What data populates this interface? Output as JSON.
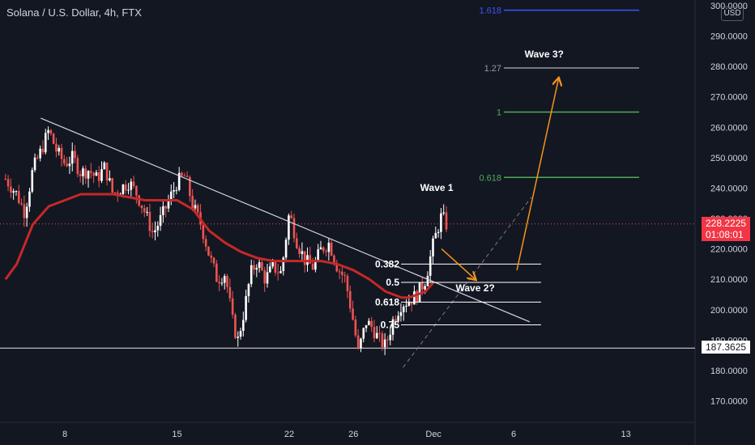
{
  "header": {
    "ticker": "Solana / U.S. Dollar, 4h, FTX",
    "currency": "USD"
  },
  "price_tag": {
    "price": "228.2225",
    "countdown": "01:08:01",
    "color": "#f23645"
  },
  "level_tag": {
    "price": "187.3625"
  },
  "colors": {
    "background": "#131722",
    "up": "#ffffff",
    "down": "#ef5350",
    "ma": "#c62828",
    "projection": "#f7931a"
  },
  "chart_data": {
    "type": "candlestick",
    "ylim": [
      163,
      300
    ],
    "y_ticks": [
      "300.0000",
      "290.0000",
      "280.0000",
      "270.0000",
      "260.0000",
      "250.0000",
      "240.0000",
      "230.0000",
      "220.0000",
      "210.0000",
      "200.0000",
      "190.0000",
      "180.0000",
      "170.0000"
    ],
    "x_ticks": [
      {
        "label": "8",
        "day": 8
      },
      {
        "label": "15",
        "day": 15
      },
      {
        "label": "22",
        "day": 22
      },
      {
        "label": "26",
        "day": 26
      },
      {
        "label": "Dec",
        "day": 31
      },
      {
        "label": "6",
        "day": 36
      },
      {
        "label": "13",
        "day": 43
      }
    ],
    "x_range_days": [
      4.3,
      46
    ],
    "close_path": [
      [
        4.3,
        243
      ],
      [
        5.0,
        238
      ],
      [
        5.5,
        232
      ],
      [
        6.0,
        246
      ],
      [
        6.5,
        252
      ],
      [
        7.0,
        259
      ],
      [
        7.5,
        252
      ],
      [
        8.0,
        248
      ],
      [
        8.5,
        250
      ],
      [
        9.0,
        245
      ],
      [
        9.5,
        246
      ],
      [
        10.0,
        243
      ],
      [
        10.5,
        247
      ],
      [
        11.0,
        238
      ],
      [
        11.5,
        240
      ],
      [
        12.0,
        242
      ],
      [
        12.5,
        238
      ],
      [
        13.0,
        232
      ],
      [
        13.5,
        225
      ],
      [
        14.0,
        230
      ],
      [
        14.5,
        236
      ],
      [
        15.0,
        242
      ],
      [
        15.5,
        244
      ],
      [
        16.0,
        234
      ],
      [
        16.5,
        228
      ],
      [
        17.0,
        218
      ],
      [
        17.5,
        210
      ],
      [
        18.0,
        212
      ],
      [
        18.5,
        195
      ],
      [
        18.8,
        190
      ],
      [
        19.2,
        200
      ],
      [
        19.6,
        212
      ],
      [
        20.0,
        216
      ],
      [
        20.5,
        210
      ],
      [
        21.0,
        214
      ],
      [
        21.5,
        212
      ],
      [
        22.0,
        232
      ],
      [
        22.5,
        222
      ],
      [
        23.0,
        216
      ],
      [
        23.5,
        214
      ],
      [
        24.0,
        220
      ],
      [
        24.5,
        222
      ],
      [
        25.0,
        214
      ],
      [
        25.5,
        210
      ],
      [
        26.0,
        196
      ],
      [
        26.3,
        186
      ],
      [
        26.8,
        196
      ],
      [
        27.2,
        194
      ],
      [
        27.6,
        190
      ],
      [
        28.0,
        188
      ],
      [
        28.5,
        197
      ],
      [
        29.0,
        202
      ],
      [
        29.5,
        203
      ],
      [
        30.0,
        205
      ],
      [
        30.5,
        210
      ],
      [
        31.0,
        222
      ],
      [
        31.5,
        231
      ],
      [
        31.8,
        228
      ]
    ],
    "moving_average": [
      [
        4.3,
        210
      ],
      [
        5.0,
        215
      ],
      [
        6.0,
        228
      ],
      [
        7.0,
        234
      ],
      [
        8.0,
        236
      ],
      [
        9.0,
        238
      ],
      [
        10.0,
        238
      ],
      [
        11.0,
        238
      ],
      [
        12.0,
        237
      ],
      [
        13.0,
        236
      ],
      [
        14.0,
        236
      ],
      [
        15.0,
        236
      ],
      [
        16.0,
        233
      ],
      [
        17.0,
        226
      ],
      [
        18.0,
        222
      ],
      [
        19.0,
        219
      ],
      [
        20.0,
        217
      ],
      [
        21.0,
        216
      ],
      [
        22.0,
        216
      ],
      [
        23.0,
        216
      ],
      [
        24.0,
        216
      ],
      [
        25.0,
        215
      ],
      [
        26.0,
        213
      ],
      [
        27.0,
        210
      ],
      [
        28.0,
        206
      ],
      [
        29.0,
        204
      ],
      [
        29.5,
        204
      ],
      [
        30.0,
        205
      ],
      [
        30.5,
        206
      ],
      [
        31.0,
        209
      ]
    ],
    "trendline": [
      [
        6.5,
        263
      ],
      [
        37.0,
        196
      ]
    ],
    "support_level": 187.3625,
    "current_price": 228.2225,
    "fib_retracement": [
      {
        "label": "0.382",
        "value": 215.0
      },
      {
        "label": "0.5",
        "value": 209.0
      },
      {
        "label": "0.618",
        "value": 202.5
      },
      {
        "label": "0.75",
        "value": 195.0
      }
    ],
    "fib_extension": [
      {
        "label": "0.618",
        "value": 243.5,
        "color": "#4caf50"
      },
      {
        "label": "1",
        "value": 265.0,
        "color": "#4caf50"
      },
      {
        "label": "1.27",
        "value": 279.5,
        "color": "#9598a1"
      },
      {
        "label": "1.618",
        "value": 298.5,
        "color": "#3f51ff"
      }
    ],
    "annotations": [
      {
        "text": "Wave 1",
        "day": 31.2,
        "value": 239
      },
      {
        "text": "Wave 2?",
        "day": 33.6,
        "value": 206
      },
      {
        "text": "Wave 3?",
        "day": 37.9,
        "value": 283
      }
    ],
    "projection": [
      [
        31.5,
        220
      ],
      [
        33.6,
        210
      ],
      [
        36.2,
        213
      ],
      [
        38.8,
        276
      ]
    ],
    "channel": [
      [
        29.1,
        181
      ],
      [
        37.1,
        237
      ]
    ]
  }
}
